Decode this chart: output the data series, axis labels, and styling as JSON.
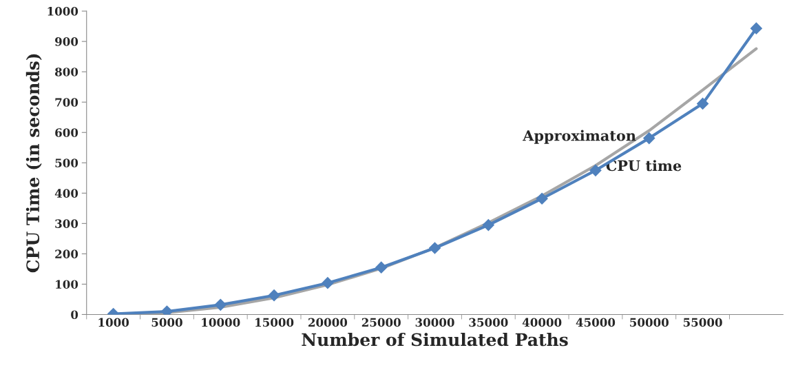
{
  "chart_data": {
    "type": "line",
    "xlabel": "Number of Simulated Paths",
    "ylabel": "CPU Time (in seconds)",
    "categories": [
      "1000",
      "5000",
      "10000",
      "15000",
      "20000",
      "25000",
      "30000",
      "35000",
      "40000",
      "45000",
      "50000",
      "55000",
      null
    ],
    "series": [
      {
        "name": "CPU time",
        "color": "#4f81bd",
        "marker": "diamond",
        "values": [
          2,
          10,
          32,
          63,
          104,
          155,
          219,
          295,
          382,
          475,
          581,
          695,
          943
        ]
      },
      {
        "name": "Approximaton",
        "color": "#a6a6a6",
        "marker": "none",
        "values": [
          0,
          6,
          24,
          55,
          98,
          152,
          220,
          302,
          391,
          491,
          606,
          740,
          876
        ]
      }
    ],
    "ylim": [
      0,
      1000
    ],
    "yticks": [
      0,
      100,
      200,
      300,
      400,
      500,
      600,
      700,
      800,
      900,
      1000
    ],
    "grid": false,
    "legend": false,
    "line_style": "solid"
  }
}
